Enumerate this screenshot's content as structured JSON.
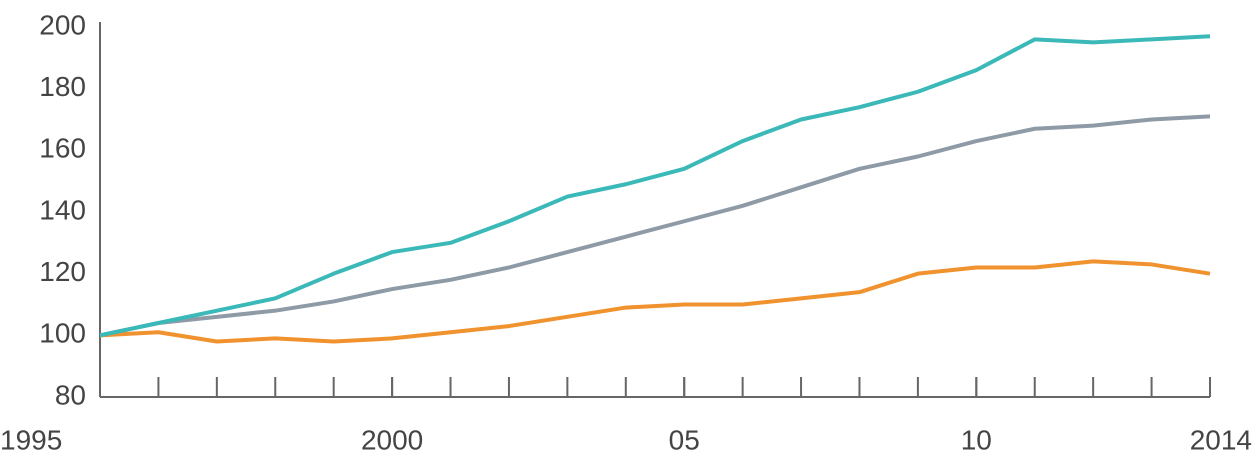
{
  "chart_data": {
    "type": "line",
    "x": [
      1995,
      1996,
      1997,
      1998,
      1999,
      2000,
      2001,
      2002,
      2003,
      2004,
      2005,
      2006,
      2007,
      2008,
      2009,
      2010,
      2011,
      2012,
      2013,
      2014
    ],
    "series": [
      {
        "color": "#3bb8b8",
        "values": [
          100,
          104,
          108,
          112,
          120,
          127,
          130,
          137,
          145,
          149,
          154,
          163,
          170,
          174,
          179,
          186,
          196,
          195,
          196,
          197
        ]
      },
      {
        "color": "#8e9aa6",
        "values": [
          100,
          104,
          106,
          108,
          111,
          115,
          118,
          122,
          127,
          132,
          137,
          142,
          148,
          154,
          158,
          163,
          167,
          168,
          170,
          171
        ]
      },
      {
        "color": "#f0922e",
        "values": [
          100,
          101,
          98,
          99,
          98,
          99,
          101,
          103,
          106,
          109,
          110,
          110,
          112,
          114,
          120,
          122,
          122,
          124,
          123,
          120
        ]
      }
    ],
    "xlim": [
      1995,
      2014
    ],
    "xticks": [
      1995,
      2000,
      {
        "value": 2005,
        "label": "05"
      },
      {
        "value": 2010,
        "label": "10"
      },
      2014
    ],
    "ylim": [
      80,
      200
    ],
    "yticks": [
      80,
      100,
      120,
      140,
      160,
      180,
      200
    ],
    "grid": false
  }
}
